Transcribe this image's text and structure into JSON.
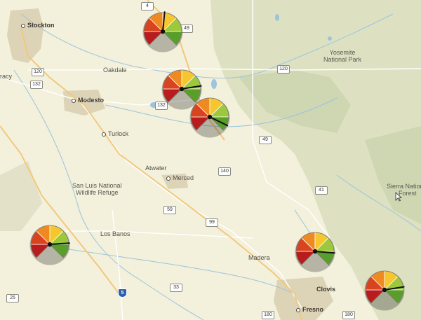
{
  "places": {
    "stockton": "Stockton",
    "racy": "racy",
    "oakdale": "Oakdale",
    "modesto": "Modesto",
    "turlock": "Turlock",
    "atwater": "Atwater",
    "merced": "Merced",
    "san_luis_1": "San Luis National",
    "san_luis_2": "Wildlife Refuge",
    "los_banos": "Los Banos",
    "madera": "Madera",
    "clovis": "Clovis",
    "fresno": "Fresno",
    "yosemite_1": "Yosemite",
    "yosemite_2": "National Park",
    "sierra_1": "Sierra National",
    "sierra_2": "Forest"
  },
  "highways": {
    "h4": "4",
    "h49a": "49",
    "h120a": "120",
    "h120b": "120",
    "h132": "132",
    "h132b": "132",
    "h49b": "49",
    "h140": "140",
    "h41": "41",
    "h59": "59",
    "h99": "99",
    "h33": "33",
    "h25": "25",
    "h180a": "180",
    "h180b": "180",
    "i5": "5"
  },
  "gauges": [
    {
      "id": "gauge-1",
      "level": 0.52
    },
    {
      "id": "gauge-2",
      "level": 0.8
    },
    {
      "id": "gauge-3",
      "level": 0.93
    },
    {
      "id": "gauge-4",
      "level": 0.82
    },
    {
      "id": "gauge-5",
      "level": 0.85
    },
    {
      "id": "gauge-6",
      "level": 0.8
    }
  ],
  "colors": {
    "land": "#f3f0dc",
    "forest": "#dfe2c4",
    "urban": "#d9d0b4",
    "water": "#9cc4dc",
    "road": "#ffffff",
    "highway": "#f4cf8a",
    "gauge_dark_red": "#b81c1c",
    "gauge_red": "#d84420",
    "gauge_orange": "#ef8a22",
    "gauge_yellow": "#f6c62e",
    "gauge_light_green": "#9cc83c",
    "gauge_green": "#5a9e2a"
  }
}
